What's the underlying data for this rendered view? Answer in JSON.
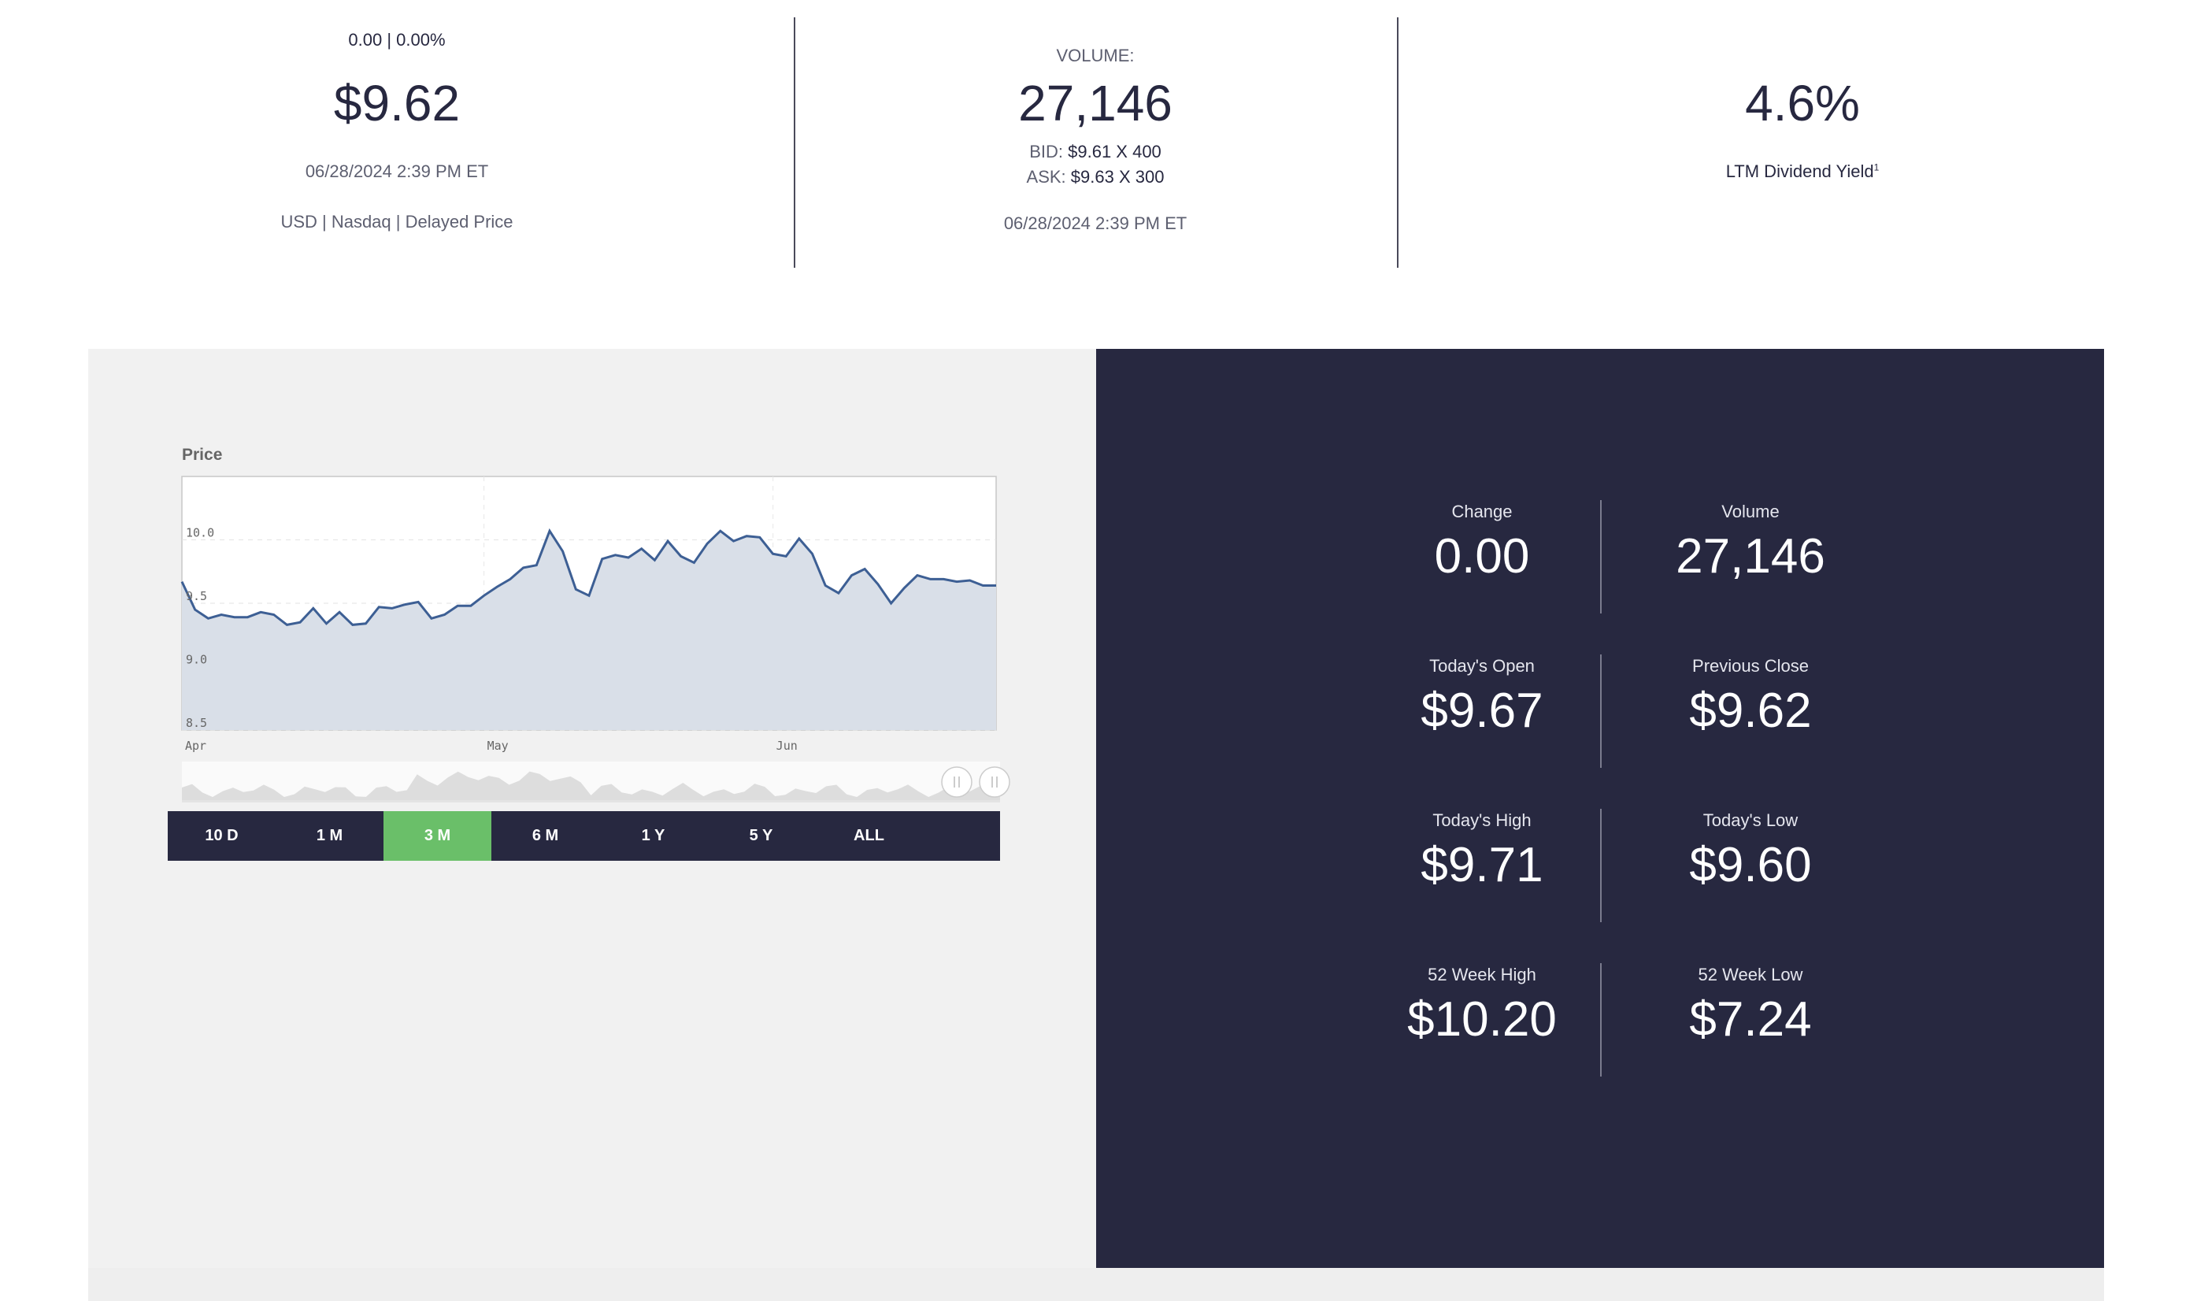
{
  "quote": {
    "change_line": "0.00 | 0.00%",
    "price": "$9.62",
    "timestamp": "06/28/2024 2:39 PM ET",
    "meta": "USD | Nasdaq | Delayed Price"
  },
  "volume_panel": {
    "label": "VOLUME:",
    "value": "27,146",
    "bid_label": "BID:",
    "bid_value": "$9.61 X 400",
    "ask_label": "ASK:",
    "ask_value": "$9.63 X 300",
    "timestamp": "06/28/2024 2:39 PM ET"
  },
  "dividend": {
    "value": "4.6%",
    "label": "LTM Dividend Yield",
    "footnote": "1"
  },
  "chart": {
    "title": "Price",
    "y_ticks": [
      "10.0",
      "9.5",
      "9.0",
      "8.5"
    ],
    "x_ticks": [
      "Apr",
      "May",
      "Jun"
    ],
    "ranges": [
      "10 D",
      "1 M",
      "3 M",
      "6 M",
      "1 Y",
      "5 Y",
      "ALL"
    ],
    "active_range": "3 M",
    "colors": {
      "line": "#3d5f94",
      "area": "#d9dfe8",
      "active": "#6abf69",
      "bar_bg": "#272840"
    }
  },
  "chart_data": {
    "type": "area",
    "title": "Price",
    "xlabel": "",
    "ylabel": "",
    "ylim": [
      8.5,
      10.5
    ],
    "x_ticks": [
      "Apr",
      "May",
      "Jun"
    ],
    "grid": true,
    "series": [
      {
        "values": [
          9.67,
          9.45,
          9.38,
          9.41,
          9.39,
          9.39,
          9.43,
          9.41,
          9.33,
          9.35,
          9.46,
          9.34,
          9.43,
          9.33,
          9.34,
          9.47,
          9.46,
          9.49,
          9.51,
          9.38,
          9.41,
          9.48,
          9.48,
          9.56,
          9.63,
          9.69,
          9.78,
          9.8,
          10.07,
          9.91,
          9.61,
          9.56,
          9.85,
          9.88,
          9.86,
          9.93,
          9.84,
          9.99,
          9.87,
          9.82,
          9.97,
          10.07,
          9.99,
          10.03,
          10.02,
          9.89,
          9.87,
          10.01,
          9.89,
          9.64,
          9.58,
          9.72,
          9.77,
          9.65,
          9.5,
          9.62,
          9.72,
          9.69,
          9.69,
          9.67,
          9.68,
          9.64,
          9.64
        ]
      }
    ]
  },
  "stats": {
    "change_label": "Change",
    "change_value": "0.00",
    "volume_label": "Volume",
    "volume_value": "27,146",
    "open_label": "Today's Open",
    "open_value": "$9.67",
    "prev_close_label": "Previous Close",
    "prev_close_value": "$9.62",
    "high_label": "Today's High",
    "high_value": "$9.71",
    "low_label": "Today's Low",
    "low_value": "$9.60",
    "wk52_high_label": "52 Week High",
    "wk52_high_value": "$10.20",
    "wk52_low_label": "52 Week Low",
    "wk52_low_value": "$7.24"
  }
}
